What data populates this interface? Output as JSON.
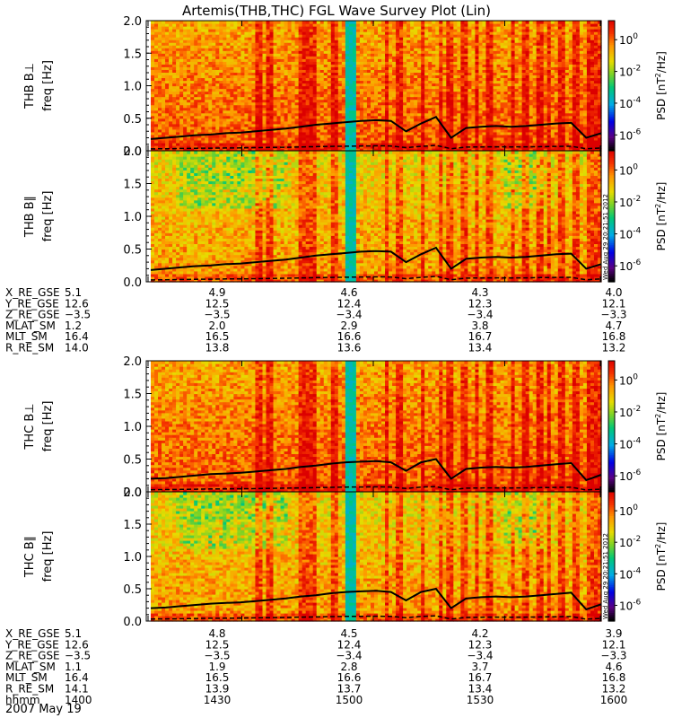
{
  "chart_data": {
    "type": "heatmap",
    "title": "Artemis(THB,THC) FGL Wave Survey Plot (Lin)",
    "date_label": "2007 May 19",
    "vertical_stamp": "Wed Aug 29 20:21:51 2012",
    "panels": [
      {
        "probe": "THB",
        "component": "B⊥",
        "ylabel": "freq [Hz]",
        "ylim": [
          0,
          2.0
        ],
        "yticks": [
          "0.0",
          "0.5",
          "1.0",
          "1.5",
          "2.0"
        ],
        "stamp": false,
        "cyclotron_line": [
          0.18,
          0.2,
          0.22,
          0.24,
          0.25,
          0.27,
          0.28,
          0.3,
          0.32,
          0.34,
          0.37,
          0.4,
          0.42,
          0.44,
          0.46,
          0.47,
          0.46,
          0.3,
          0.42,
          0.52,
          0.2,
          0.35,
          0.37,
          0.38,
          0.37,
          0.38,
          0.4,
          0.42,
          0.43,
          0.2,
          0.27
        ]
      },
      {
        "probe": "THB",
        "component": "B∥",
        "ylabel": "freq [Hz]",
        "ylim": [
          0,
          2.0
        ],
        "yticks": [
          "0.0",
          "0.5",
          "1.0",
          "1.5",
          "2.0"
        ],
        "stamp": true,
        "cyclotron_line": [
          0.18,
          0.2,
          0.22,
          0.24,
          0.25,
          0.27,
          0.28,
          0.3,
          0.32,
          0.34,
          0.37,
          0.4,
          0.42,
          0.44,
          0.46,
          0.47,
          0.46,
          0.3,
          0.42,
          0.52,
          0.2,
          0.35,
          0.37,
          0.38,
          0.37,
          0.38,
          0.4,
          0.42,
          0.43,
          0.2,
          0.27
        ]
      },
      {
        "probe": "THC",
        "component": "B⊥",
        "ylabel": "freq [Hz]",
        "ylim": [
          0,
          2.0
        ],
        "yticks": [
          "0.0",
          "0.5",
          "1.0",
          "1.5",
          "2.0"
        ],
        "stamp": false,
        "cyclotron_line": [
          0.2,
          0.21,
          0.23,
          0.25,
          0.27,
          0.28,
          0.29,
          0.31,
          0.33,
          0.35,
          0.38,
          0.4,
          0.43,
          0.45,
          0.46,
          0.47,
          0.45,
          0.32,
          0.45,
          0.5,
          0.2,
          0.35,
          0.37,
          0.38,
          0.37,
          0.38,
          0.4,
          0.42,
          0.44,
          0.18,
          0.26
        ]
      },
      {
        "probe": "THC",
        "component": "B∥",
        "ylabel": "freq [Hz]",
        "ylim": [
          0,
          2.0
        ],
        "yticks": [
          "0.0",
          "0.5",
          "1.0",
          "1.5",
          "2.0"
        ],
        "stamp": true,
        "cyclotron_line": [
          0.2,
          0.21,
          0.23,
          0.25,
          0.27,
          0.28,
          0.29,
          0.31,
          0.33,
          0.35,
          0.38,
          0.4,
          0.43,
          0.45,
          0.46,
          0.47,
          0.45,
          0.32,
          0.45,
          0.5,
          0.2,
          0.35,
          0.37,
          0.38,
          0.37,
          0.38,
          0.4,
          0.42,
          0.44,
          0.18,
          0.26
        ]
      }
    ],
    "colorbar": {
      "label": "PSD [nT²/Hz]",
      "label_parts": [
        "PSD [nT",
        "2",
        "/Hz]"
      ],
      "ticks": [
        {
          "base": "10",
          "exp": "0",
          "log": 0
        },
        {
          "base": "10",
          "exp": "-2",
          "log": -2
        },
        {
          "base": "10",
          "exp": "-4",
          "log": -4
        },
        {
          "base": "10",
          "exp": "-6",
          "log": -6
        }
      ],
      "log_range": [
        -7,
        1.2
      ]
    },
    "spectrogram_features": {
      "data_start_fraction": 0.0,
      "gap_band": [
        0.425,
        0.45
      ],
      "gap_log_psd": -3.5,
      "strong_columns": [
        0.24,
        0.26,
        0.33,
        0.35,
        0.36,
        0.4,
        0.52,
        0.55,
        0.6,
        0.64,
        0.66,
        0.69,
        0.72,
        0.75,
        0.8,
        0.83,
        0.86,
        0.88,
        0.91,
        0.94,
        0.97,
        0.985
      ]
    },
    "ephemeris_blocks": [
      {
        "rows": [
          {
            "label": "X_RE_GSE",
            "values": [
              "5.1",
              "4.9",
              "4.6",
              "4.3",
              "4.0"
            ]
          },
          {
            "label": "Y_RE_GSE",
            "values": [
              "12.6",
              "12.5",
              "12.4",
              "12.3",
              "12.1"
            ]
          },
          {
            "label": "Z_RE_GSE",
            "values": [
              "−3.5",
              "−3.5",
              "−3.4",
              "−3.4",
              "−3.3"
            ]
          },
          {
            "label": "MLAT_SM",
            "values": [
              "1.2",
              "2.0",
              "2.9",
              "3.8",
              "4.7"
            ]
          },
          {
            "label": "MLT_SM",
            "values": [
              "16.4",
              "16.5",
              "16.6",
              "16.7",
              "16.8"
            ]
          },
          {
            "label": "R_RE_SM",
            "values": [
              "14.0",
              "13.8",
              "13.6",
              "13.4",
              "13.2"
            ]
          }
        ]
      },
      {
        "rows": [
          {
            "label": "X_RE_GSE",
            "values": [
              "5.1",
              "4.8",
              "4.5",
              "4.2",
              "3.9"
            ]
          },
          {
            "label": "Y_RE_GSE",
            "values": [
              "12.6",
              "12.5",
              "12.4",
              "12.3",
              "12.1"
            ]
          },
          {
            "label": "Z_RE_GSE",
            "values": [
              "−3.5",
              "−3.5",
              "−3.4",
              "−3.4",
              "−3.3"
            ]
          },
          {
            "label": "MLAT_SM",
            "values": [
              "1.1",
              "1.9",
              "2.8",
              "3.7",
              "4.6"
            ]
          },
          {
            "label": "MLT_SM",
            "values": [
              "16.4",
              "16.5",
              "16.6",
              "16.7",
              "16.8"
            ]
          },
          {
            "label": "R_RE_SM",
            "values": [
              "14.1",
              "13.9",
              "13.7",
              "13.4",
              "13.2"
            ]
          },
          {
            "label": "hhmm",
            "values": [
              "1400",
              "1430",
              "1500",
              "1530",
              "1600"
            ]
          }
        ]
      }
    ]
  }
}
